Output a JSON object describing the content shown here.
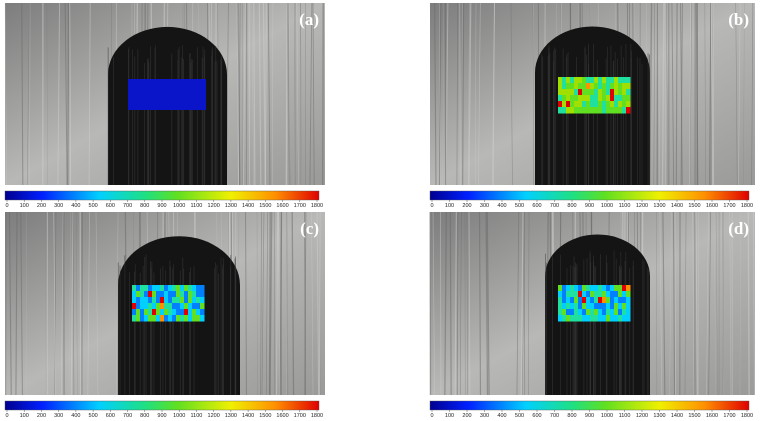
{
  "panels": [
    {
      "label": "(a)",
      "scale": [
        0,
        100,
        200,
        300,
        400,
        500,
        600,
        700,
        800,
        900,
        1000,
        1100,
        1200,
        1300,
        1400,
        1500,
        1600,
        1700,
        1800
      ]
    },
    {
      "label": "(b)",
      "scale": [
        0,
        100,
        200,
        300,
        400,
        500,
        600,
        700,
        800,
        900,
        1000,
        1100,
        1200,
        1300,
        1400,
        1500,
        1600,
        1700,
        1800
      ]
    },
    {
      "label": "(c)",
      "scale": [
        0,
        100,
        200,
        300,
        400,
        500,
        600,
        700,
        800,
        900,
        1000,
        1100,
        1200,
        1300,
        1400,
        1500,
        1600,
        1700,
        1800
      ]
    },
    {
      "label": "(d)",
      "scale": [
        0,
        100,
        200,
        300,
        400,
        500,
        600,
        700,
        800,
        900,
        1000,
        1100,
        1200,
        1300,
        1400,
        1500,
        1600,
        1700,
        1800
      ]
    }
  ]
}
